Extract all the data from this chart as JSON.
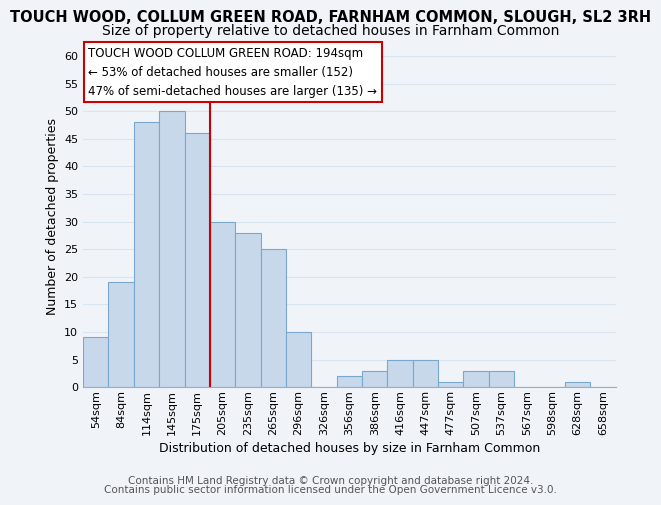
{
  "title": "TOUCH WOOD, COLLUM GREEN ROAD, FARNHAM COMMON, SLOUGH, SL2 3RH",
  "subtitle": "Size of property relative to detached houses in Farnham Common",
  "xlabel": "Distribution of detached houses by size in Farnham Common",
  "ylabel": "Number of detached properties",
  "bin_labels": [
    "54sqm",
    "84sqm",
    "114sqm",
    "145sqm",
    "175sqm",
    "205sqm",
    "235sqm",
    "265sqm",
    "296sqm",
    "326sqm",
    "356sqm",
    "386sqm",
    "416sqm",
    "447sqm",
    "477sqm",
    "507sqm",
    "537sqm",
    "567sqm",
    "598sqm",
    "628sqm",
    "658sqm"
  ],
  "bar_heights": [
    9,
    19,
    48,
    50,
    46,
    30,
    28,
    25,
    10,
    0,
    2,
    3,
    5,
    5,
    1,
    3,
    3,
    0,
    0,
    1,
    0
  ],
  "bar_color": "#c8d8eb",
  "bar_edge_color": "#7aa8cc",
  "vline_x": 4.5,
  "vline_color": "#cc0000",
  "ylim": [
    0,
    62
  ],
  "yticks": [
    0,
    5,
    10,
    15,
    20,
    25,
    30,
    35,
    40,
    45,
    50,
    55,
    60
  ],
  "annotation_box_title": "TOUCH WOOD COLLUM GREEN ROAD: 194sqm",
  "annotation_line1": "← 53% of detached houses are smaller (152)",
  "annotation_line2": "47% of semi-detached houses are larger (135) →",
  "footnote1": "Contains HM Land Registry data © Crown copyright and database right 2024.",
  "footnote2": "Contains public sector information licensed under the Open Government Licence v3.0.",
  "background_color": "#f0f4f9",
  "plot_bg_color": "#f0f4f9",
  "grid_color": "#d8e4f0",
  "title_fontsize": 10.5,
  "subtitle_fontsize": 10,
  "axis_fontsize": 9,
  "tick_fontsize": 8,
  "footnote_fontsize": 7.5
}
